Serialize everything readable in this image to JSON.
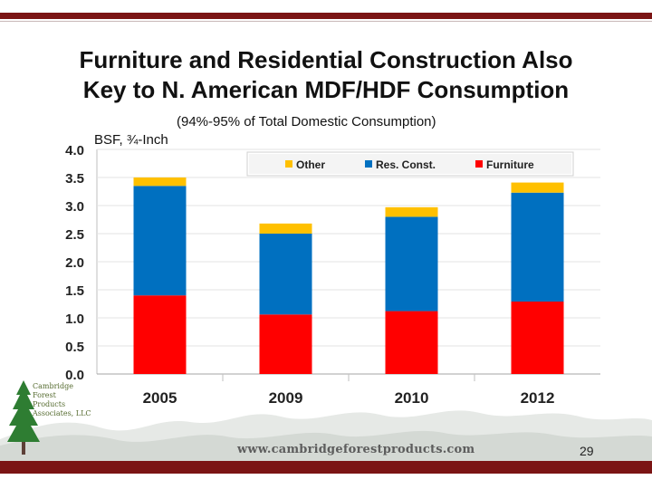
{
  "slide": {
    "title_line1": "Furniture and Residential Construction Also",
    "title_line2": "Key to N. American MDF/HDF Consumption",
    "subtitle": "(94%-95% of Total Domestic Consumption)",
    "unit_label": "BSF, ¾-Inch",
    "page_number": "29",
    "website": "www.cambridgeforestproducts.com",
    "logo": {
      "line1": "Cambridge",
      "line2": "Forest",
      "line3": "Products",
      "line4": "Associates, LLC"
    },
    "colors": {
      "accent_bar": "#7b1414",
      "other": "#ffc000",
      "res_const": "#0070c0",
      "furniture": "#ff0000"
    }
  },
  "chart_data": {
    "type": "bar",
    "stacked": true,
    "title": "(94%-95% of Total Domestic Consumption)",
    "ylabel": "BSF, ¾-Inch",
    "xlabel": "",
    "categories": [
      "2005",
      "2009",
      "2010",
      "2012"
    ],
    "series": [
      {
        "name": "Furniture",
        "color": "#ff0000",
        "values": [
          1.4,
          1.06,
          1.12,
          1.29
        ]
      },
      {
        "name": "Res. Const.",
        "color": "#0070c0",
        "values": [
          1.95,
          1.44,
          1.68,
          1.94
        ]
      },
      {
        "name": "Other",
        "color": "#ffc000",
        "values": [
          0.15,
          0.18,
          0.17,
          0.18
        ]
      }
    ],
    "legend_order": [
      "Other",
      "Res. Const.",
      "Furniture"
    ],
    "ylim": [
      0,
      4.0
    ],
    "yticks": [
      "0.0",
      "0.5",
      "1.0",
      "1.5",
      "2.0",
      "2.5",
      "3.0",
      "3.5",
      "4.0"
    ],
    "grid": true,
    "legend_position": "top-right"
  }
}
